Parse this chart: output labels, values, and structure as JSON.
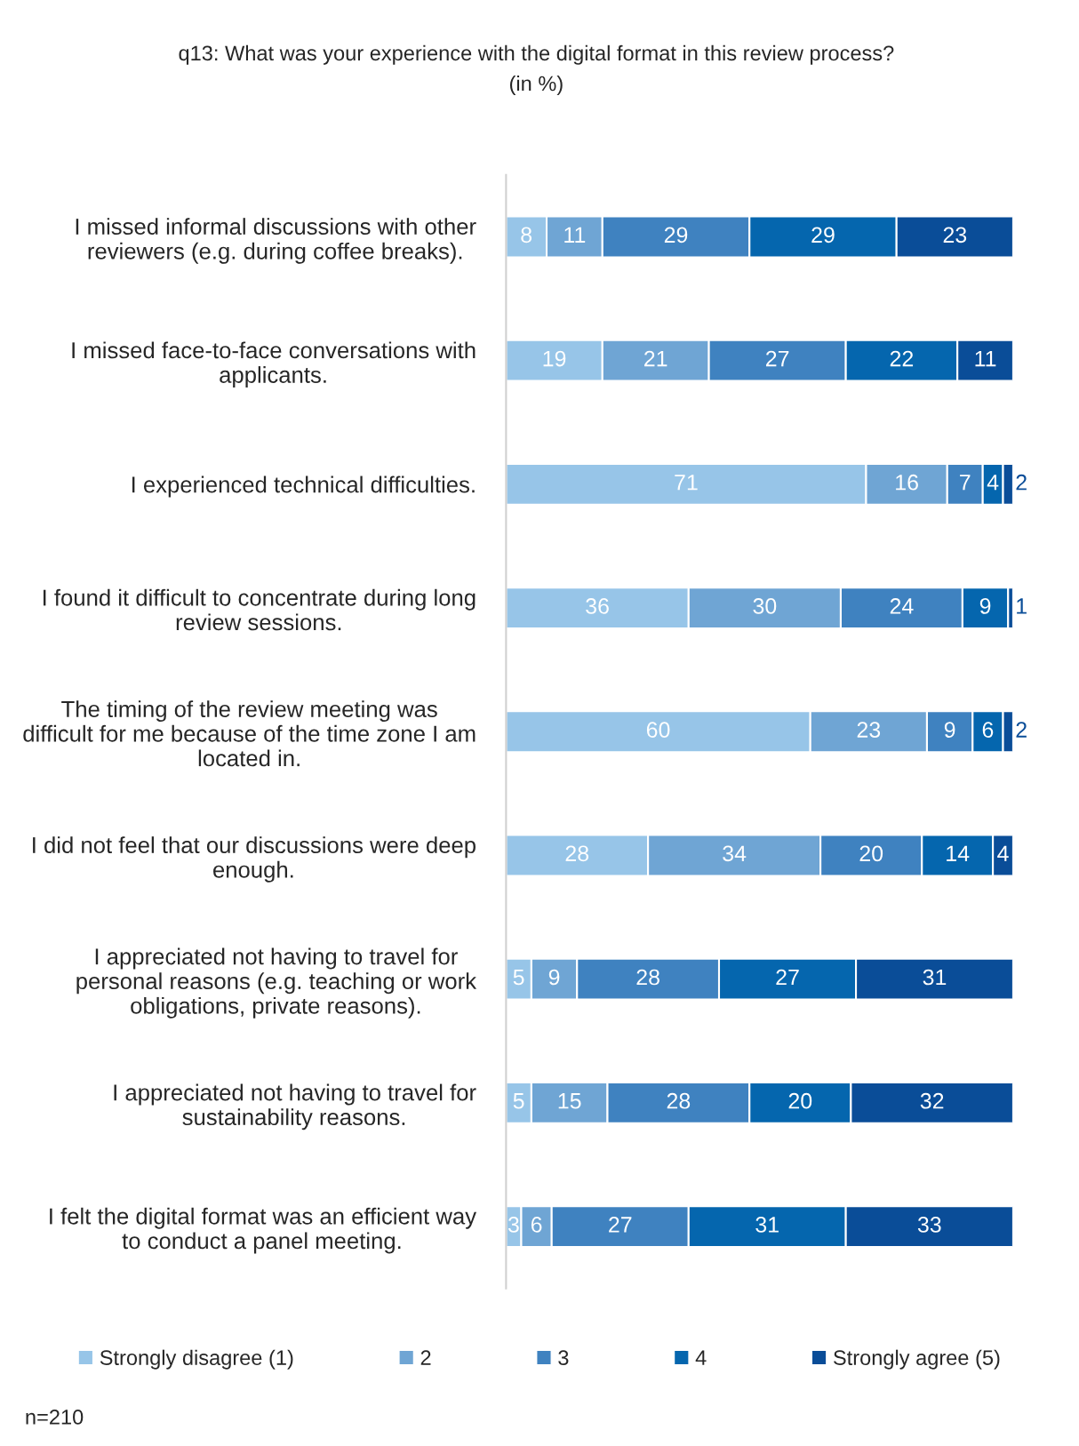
{
  "chart_data": {
    "type": "bar",
    "orientation": "horizontal",
    "stacked": true,
    "title": "q13: What was your experience with the digital format in this review process?",
    "subtitle": "(in %)",
    "categories": [
      "I missed informal discussions with other\nreviewers (e.g. during coffee breaks).",
      "I missed face-to-face conversations with\napplicants.",
      "I experienced technical difficulties.",
      "I found it difficult to concentrate during long\nreview sessions.",
      "The timing of the review meeting was\ndifficult for me because of the time zone I am\nlocated in.",
      "I did not feel that our discussions were deep\nenough.",
      "I appreciated not having to travel for\npersonal reasons (e.g. teaching or work\nobligations, private reasons).",
      "I appreciated not having to travel for\nsustainability reasons.",
      "I felt the digital format was an efficient way\nto conduct a panel meeting."
    ],
    "series": [
      {
        "name": "Strongly disagree (1)",
        "color": "#97c5e8",
        "values": [
          8,
          19,
          71,
          36,
          60,
          28,
          5,
          5,
          3
        ]
      },
      {
        "name": "2",
        "color": "#6fa5d4",
        "values": [
          11,
          21,
          16,
          30,
          23,
          34,
          9,
          15,
          6
        ]
      },
      {
        "name": "3",
        "color": "#3f82c0",
        "values": [
          29,
          27,
          7,
          24,
          9,
          20,
          28,
          28,
          27
        ]
      },
      {
        "name": "4",
        "color": "#0566ae",
        "values": [
          29,
          22,
          4,
          9,
          6,
          14,
          27,
          20,
          31
        ]
      },
      {
        "name": "Strongly agree (5)",
        "color": "#0a4d98",
        "values": [
          23,
          11,
          2,
          1,
          2,
          4,
          31,
          32,
          33
        ]
      }
    ],
    "xlim": [
      0,
      100
    ],
    "tick_labels": "y",
    "data_labels": true,
    "legend": "bottom",
    "annotations": [
      "n=210"
    ]
  }
}
